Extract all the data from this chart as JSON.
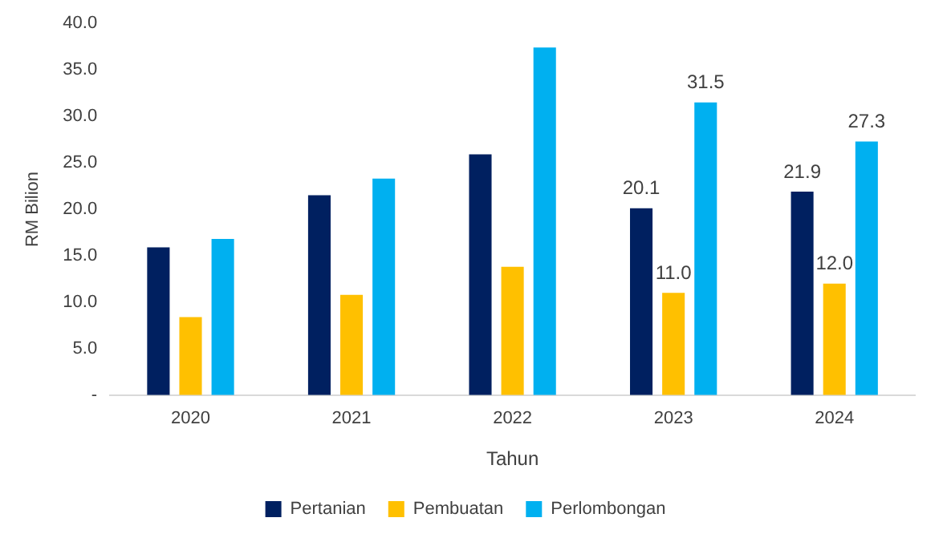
{
  "chart_data": {
    "type": "bar",
    "xlabel": "Tahun",
    "ylabel": "RM Bilion",
    "categories": [
      "2020",
      "2021",
      "2022",
      "2023",
      "2024"
    ],
    "series": [
      {
        "name": "Pertanian",
        "color": "#002060",
        "values": [
          15.9,
          21.5,
          25.9,
          20.1,
          21.9
        ],
        "value_labels": [
          null,
          null,
          null,
          "20.1",
          "21.9"
        ]
      },
      {
        "name": "Pembuatan",
        "color": "#ffc000",
        "values": [
          8.4,
          10.8,
          13.8,
          11.0,
          12.0
        ],
        "value_labels": [
          null,
          null,
          null,
          "11.0",
          "12.0"
        ]
      },
      {
        "name": "Perlombongan",
        "color": "#00b0f0",
        "values": [
          16.8,
          23.3,
          37.4,
          31.5,
          27.3
        ],
        "value_labels": [
          null,
          null,
          null,
          "31.5",
          "27.3"
        ]
      }
    ],
    "ylim": [
      0,
      40
    ],
    "yticks": [
      {
        "value": 0,
        "label": "-"
      },
      {
        "value": 5,
        "label": "5.0"
      },
      {
        "value": 10,
        "label": "10.0"
      },
      {
        "value": 15,
        "label": "15.0"
      },
      {
        "value": 20,
        "label": "20.0"
      },
      {
        "value": 25,
        "label": "25.0"
      },
      {
        "value": 30,
        "label": "30.0"
      },
      {
        "value": 35,
        "label": "35.0"
      },
      {
        "value": 40,
        "label": "40.0"
      }
    ],
    "grid": false,
    "legend": "bottom"
  }
}
